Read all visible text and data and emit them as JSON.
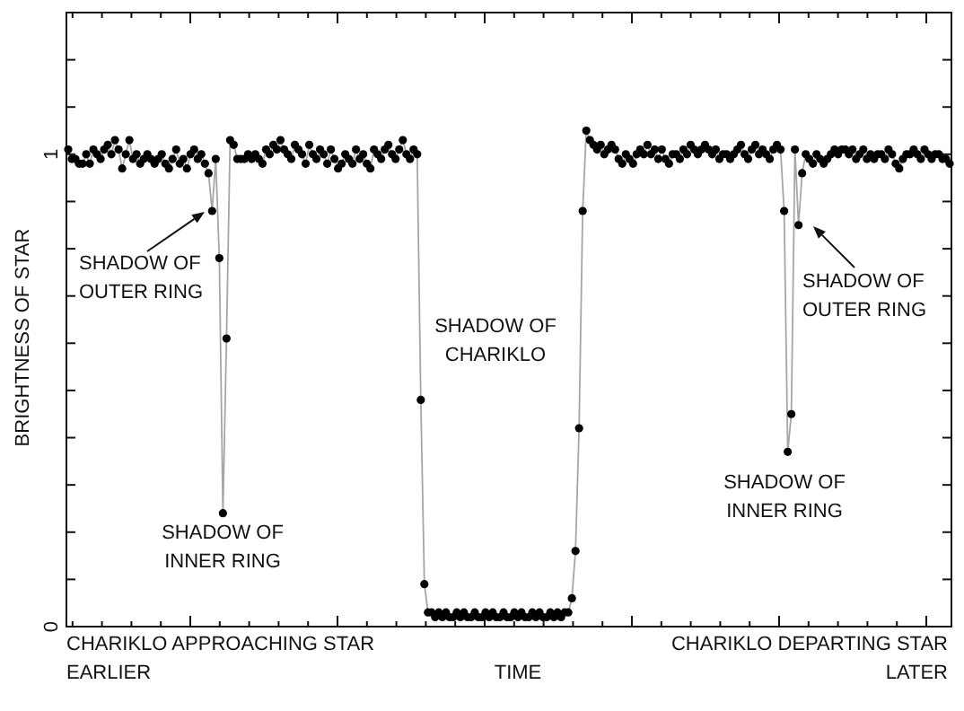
{
  "chart_data": {
    "type": "line",
    "xlabel": "TIME",
    "ylabel": "BRIGHTNESS OF STAR",
    "marker": "circle",
    "line_style": "solid",
    "color": "#000000",
    "ylim": [
      0,
      1.3
    ],
    "yticks": [
      0,
      {
        "value": 0.1,
        "label": null
      },
      {
        "value": 0.2,
        "label": null
      },
      {
        "value": 0.3,
        "label": null
      },
      {
        "value": 0.4,
        "label": null
      },
      {
        "value": 0.5,
        "label": null
      },
      {
        "value": 0.6,
        "label": null
      },
      {
        "value": 0.7,
        "label": null
      },
      {
        "value": 0.8,
        "label": null
      },
      {
        "value": 0.9,
        "label": null
      },
      1,
      {
        "value": 1.1,
        "label": null
      },
      {
        "value": 1.2,
        "label": null
      }
    ],
    "annotations": [
      "SHADOW OF\nOUTER RING",
      "SHADOW OF\nINNER RING",
      "SHADOW OF\nCHARIKLO",
      "SHADOW OF\nINNER RING",
      "SHADOW OF\nOUTER RING",
      "CHARIKLO APPROACHING STAR\nEARLIER",
      "CHARIKLO DEPARTING STAR\nLATER"
    ],
    "categories": [
      null,
      null,
      null,
      null,
      null,
      null,
      null,
      null,
      null,
      null,
      null,
      null,
      null,
      null,
      null,
      null,
      null,
      null,
      null,
      null,
      null,
      null,
      null,
      null,
      null,
      null,
      null,
      null,
      null,
      null,
      null,
      null,
      null,
      null,
      null,
      null,
      null,
      null,
      null,
      null,
      null,
      null,
      null,
      null,
      null,
      null,
      null,
      null,
      null,
      null,
      null,
      null,
      null,
      null,
      null,
      null,
      null,
      null,
      null,
      null,
      null,
      null,
      null,
      null,
      null,
      null,
      null,
      null,
      null,
      null,
      null,
      null,
      null,
      null,
      null,
      null,
      null,
      null,
      null,
      null,
      null,
      null,
      null,
      null,
      null,
      null,
      null,
      null,
      null,
      null,
      null,
      null,
      null,
      null,
      null,
      null,
      null,
      null,
      null,
      null,
      null,
      null,
      null,
      null,
      null,
      null,
      null,
      null,
      null,
      null,
      null,
      null,
      null,
      null,
      null,
      null,
      null,
      null,
      null,
      null,
      null,
      null,
      null,
      null,
      null,
      null,
      null,
      null,
      null,
      null,
      null,
      null,
      null,
      null,
      null,
      null,
      null,
      null,
      null,
      null,
      null,
      null,
      null,
      null,
      null,
      null,
      null,
      null,
      null,
      null,
      null,
      null,
      null,
      null,
      null,
      null,
      null,
      null,
      null,
      null,
      null,
      null,
      null,
      null,
      null,
      null,
      null,
      null,
      null,
      null,
      null,
      null,
      null,
      null,
      null,
      null,
      null,
      null,
      null,
      null,
      null,
      null,
      null,
      null,
      null,
      null,
      null,
      null,
      null,
      null,
      null,
      null,
      null,
      null,
      null,
      null,
      null,
      null,
      null,
      null,
      null,
      null,
      null,
      null,
      null,
      null,
      null,
      null,
      null,
      null,
      null,
      null,
      null,
      null,
      null,
      null,
      null,
      null,
      null,
      null,
      null,
      null,
      null,
      null,
      null,
      null,
      null,
      null,
      null,
      null,
      null,
      null,
      null,
      null,
      null,
      null,
      null,
      null,
      null,
      null,
      null,
      null,
      null,
      null,
      null,
      null
    ],
    "values": [
      1.01,
      0.99,
      0.99,
      0.98,
      0.98,
      1.0,
      0.98,
      1.01,
      1.0,
      0.99,
      1.01,
      1.02,
      1.0,
      1.03,
      1.01,
      0.97,
      1.0,
      1.03,
      0.99,
      1.0,
      0.98,
      0.99,
      1.0,
      0.99,
      0.98,
      0.99,
      1.0,
      0.98,
      0.97,
      0.99,
      1.01,
      0.98,
      0.99,
      0.97,
      1.0,
      1.01,
      0.99,
      1.0,
      0.98,
      0.96,
      0.88,
      0.99,
      0.78,
      0.24,
      0.61,
      1.03,
      1.02,
      0.99,
      0.99,
      0.99,
      1.0,
      0.99,
      1.0,
      0.99,
      0.98,
      1.01,
      1.0,
      1.02,
      1.01,
      1.03,
      1.01,
      1.0,
      0.99,
      1.02,
      1.01,
      1.0,
      0.98,
      1.02,
      1.0,
      0.99,
      1.01,
      1.0,
      0.98,
      1.01,
      0.99,
      0.97,
      0.98,
      1.0,
      0.99,
      0.98,
      1.01,
      0.99,
      1.0,
      0.98,
      0.97,
      1.01,
      1.0,
      0.99,
      1.01,
      1.02,
      1.0,
      0.99,
      1.01,
      1.03,
      1.0,
      0.99,
      1.01,
      1.0,
      0.48,
      0.09,
      0.03,
      0.03,
      0.02,
      0.03,
      0.02,
      0.03,
      0.02,
      0.02,
      0.03,
      0.02,
      0.03,
      0.02,
      0.02,
      0.03,
      0.02,
      0.02,
      0.03,
      0.02,
      0.03,
      0.02,
      0.02,
      0.03,
      0.02,
      0.02,
      0.03,
      0.02,
      0.03,
      0.02,
      0.02,
      0.03,
      0.02,
      0.03,
      0.02,
      0.02,
      0.03,
      0.02,
      0.03,
      0.02,
      0.03,
      0.03,
      0.06,
      0.16,
      0.42,
      0.88,
      1.05,
      1.03,
      1.02,
      1.01,
      1.02,
      1.0,
      1.01,
      1.02,
      1.01,
      0.99,
      0.98,
      1.0,
      0.99,
      0.98,
      1.0,
      1.01,
      1.0,
      1.02,
      1.0,
      1.01,
      0.99,
      1.01,
      0.99,
      0.98,
      1.0,
      1.0,
      0.99,
      1.01,
      1.0,
      1.02,
      1.01,
      1.0,
      1.01,
      1.02,
      1.01,
      1.0,
      1.01,
      0.99,
      1.0,
      1.0,
      0.99,
      1.0,
      1.01,
      1.02,
      1.0,
      0.99,
      1.01,
      1.02,
      1.0,
      1.01,
      1.0,
      0.99,
      1.01,
      1.02,
      1.01,
      0.88,
      0.37,
      0.45,
      1.01,
      0.85,
      0.96,
      1.0,
      0.99,
      0.98,
      1.0,
      0.99,
      0.98,
      0.99,
      1.0,
      1.01,
      1.0,
      1.01,
      1.01,
      1.0,
      1.01,
      0.99,
      1.0,
      1.01,
      0.99,
      1.0,
      0.99,
      1.0,
      1.0,
      0.99,
      1.01,
      1.0,
      0.98,
      0.97,
      0.99,
      1.0,
      1.0,
      1.01,
      1.0,
      0.99,
      1.01,
      1.0,
      0.99,
      1.0,
      1.0,
      0.99,
      0.99,
      0.98
    ]
  }
}
